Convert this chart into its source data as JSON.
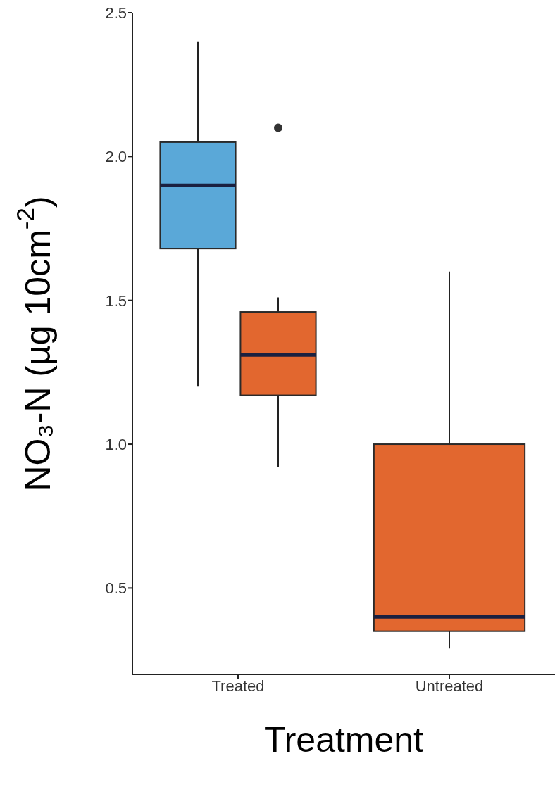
{
  "chart_data": {
    "type": "box",
    "xlabel": "Treatment",
    "ylabel": "NO₃-N (µg 10cm$^{-2}$)",
    "categories": [
      "Treated",
      "Untreated"
    ],
    "ylim": [
      0.2,
      2.5
    ],
    "yticks": [
      {
        "value": 0.5,
        "label": "0.5"
      },
      {
        "value": 1.0,
        "label": "1.0"
      },
      {
        "value": 1.5,
        "label": "1.5"
      },
      {
        "value": 2.0,
        "label": "2.0"
      },
      {
        "value": 2.5,
        "label": "2.5"
      }
    ],
    "series": [
      {
        "color": "#5aa8d8",
        "boxes": [
          {
            "low": 1.2,
            "q1": 1.68,
            "median": 1.9,
            "q3": 2.05,
            "high": 2.4
          },
          null
        ]
      },
      {
        "color": "#e2672f",
        "boxes": [
          {
            "low": 0.92,
            "q1": 1.17,
            "median": 1.31,
            "q3": 1.46,
            "high": 1.51,
            "outliers": [
              2.1
            ]
          },
          {
            "low": 0.29,
            "q1": 0.35,
            "median": 0.4,
            "q3": 1.0,
            "high": 1.6
          }
        ]
      }
    ]
  }
}
